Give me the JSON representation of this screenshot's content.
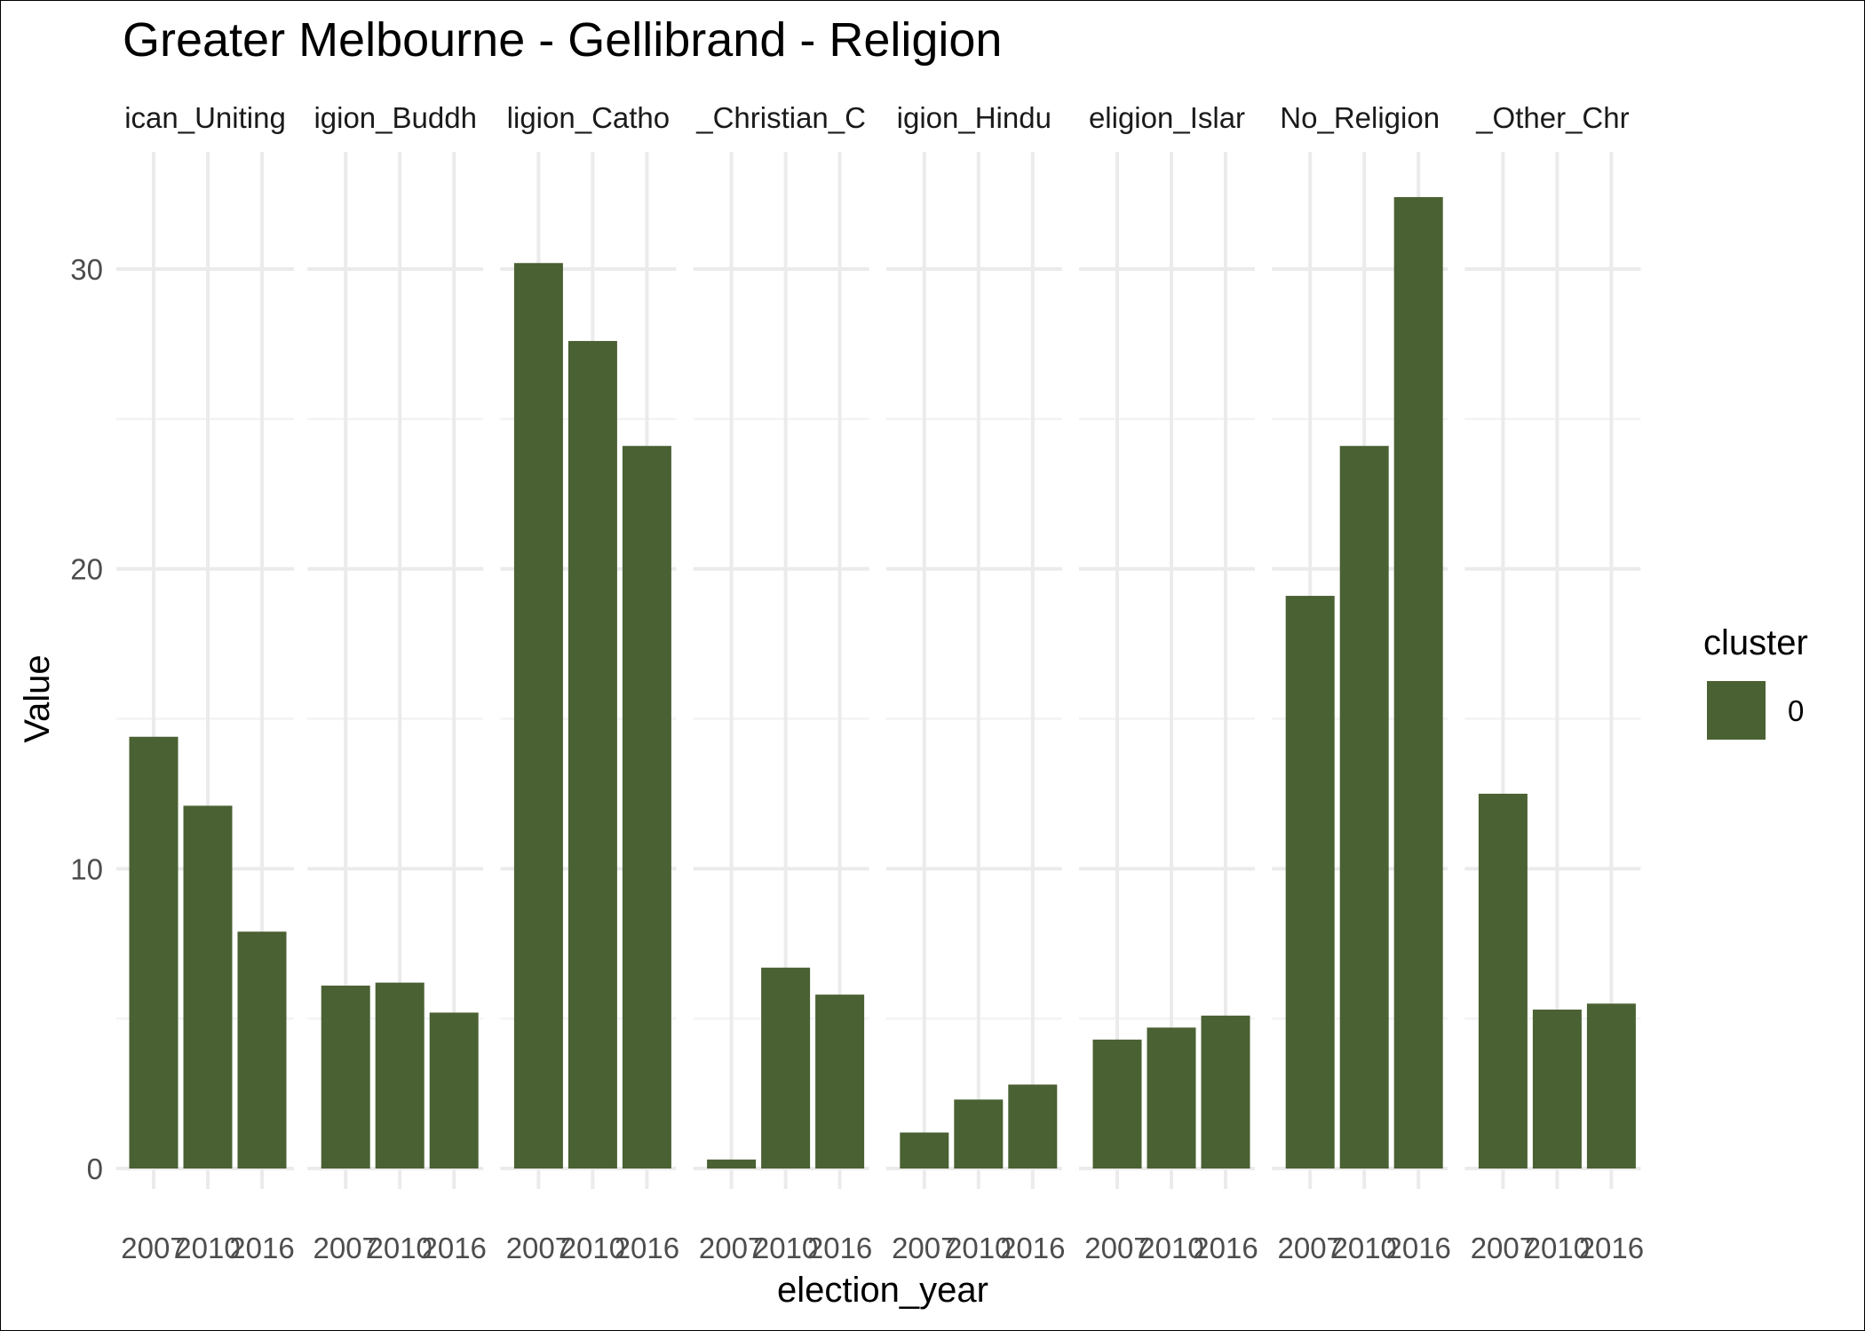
{
  "chart_data": {
    "type": "bar",
    "title": "Greater Melbourne - Gellibrand - Religion",
    "xlabel": "election_year",
    "ylabel": "Value",
    "ylim": [
      0,
      33
    ],
    "y_ticks": [
      0,
      10,
      20,
      30
    ],
    "grid": true,
    "categories": [
      "2007",
      "2010",
      "2016"
    ],
    "facets": [
      {
        "label": "ican_Uniting",
        "values": [
          14.4,
          12.1,
          7.9
        ]
      },
      {
        "label": "igion_Buddh",
        "values": [
          6.1,
          6.2,
          5.2
        ]
      },
      {
        "label": "ligion_Catho",
        "values": [
          30.2,
          27.6,
          24.1
        ]
      },
      {
        "label": "_Christian_C",
        "values": [
          0.3,
          6.7,
          5.8
        ]
      },
      {
        "label": "igion_Hindu",
        "values": [
          1.2,
          2.3,
          2.8
        ]
      },
      {
        "label": "eligion_Islar",
        "values": [
          4.3,
          4.7,
          5.1
        ]
      },
      {
        "label": "No_Religion",
        "values": [
          19.1,
          24.1,
          32.4
        ]
      },
      {
        "label": "_Other_Chr",
        "values": [
          12.5,
          5.3,
          5.5
        ]
      }
    ],
    "legend": {
      "title": "cluster",
      "position": "right",
      "items": [
        {
          "label": "0",
          "color": "#4a6133"
        }
      ]
    },
    "bar_color": "#4a6133"
  }
}
